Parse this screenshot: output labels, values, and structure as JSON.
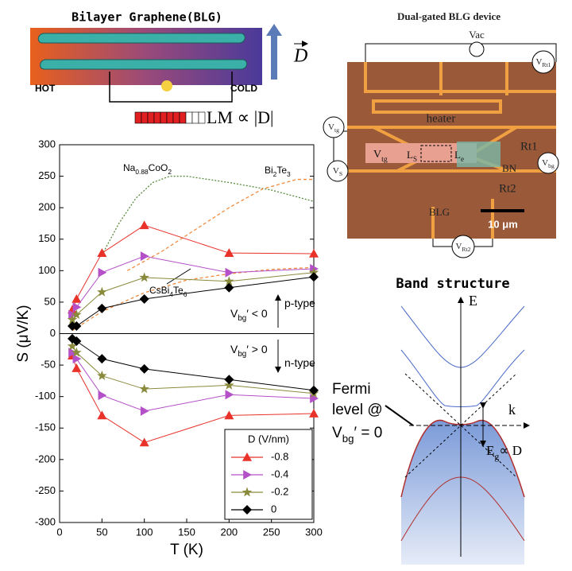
{
  "figure": {
    "blg": {
      "title": "Bilayer Graphene(BLG)",
      "hot": "HOT",
      "cold": "COLD",
      "field": "D",
      "lm": [
        {
          "text": "LM ∝ |"
        },
        {
          "text": "D"
        },
        {
          "text": "|"
        }
      ]
    },
    "device": {
      "title": "Dual-gated BLG device",
      "vac": "Vac",
      "vrt1": [
        {
          "text": "V"
        },
        {
          "text": "Rt1",
          "sub": true
        }
      ],
      "vrt2": [
        {
          "text": "V"
        },
        {
          "text": "Rt2",
          "sub": true
        }
      ],
      "vtg": [
        {
          "text": "V"
        },
        {
          "text": "tg",
          "sub": true
        }
      ],
      "vs": [
        {
          "text": "V"
        },
        {
          "text": "S",
          "sub": true
        }
      ],
      "vbg": [
        {
          "text": "V"
        },
        {
          "text": "bg",
          "sub": true
        }
      ],
      "vtg_inner": [
        {
          "text": "V"
        },
        {
          "text": "tg",
          "sub": true
        }
      ],
      "ls": [
        {
          "text": "L"
        },
        {
          "text": "S",
          "sub": true
        }
      ],
      "le": [
        {
          "text": "L"
        },
        {
          "text": "e",
          "sub": true
        }
      ],
      "heater": "heater",
      "rt1": "Rt1",
      "rt2": "Rt2",
      "bn": "BN",
      "blg": "BLG",
      "scale": "10 μm"
    },
    "band": {
      "title": "Band structure",
      "e": "E",
      "k": "k",
      "fermi1": "Fermi",
      "fermi2": "level @",
      "fermi3": [
        {
          "text": "V"
        },
        {
          "text": "bg",
          "sub": true
        },
        {
          "text": "′ = 0"
        }
      ],
      "eg": [
        {
          "text": "E"
        },
        {
          "text": "g",
          "sub": true
        },
        {
          "text": "∝ D"
        }
      ]
    }
  },
  "chart_data": {
    "type": "line",
    "x_label": "T (K)",
    "y_label": "S (μV/K)",
    "xlim": [
      0,
      300
    ],
    "xticks": [
      0,
      50,
      100,
      150,
      200,
      250,
      300
    ],
    "ylim": [
      -300,
      300
    ],
    "yticks": [
      -300,
      -250,
      -200,
      -150,
      -100,
      -50,
      0,
      50,
      100,
      150,
      200,
      250,
      300
    ],
    "legend_title": "D (V/nm)",
    "legend_position": "lower right",
    "x": [
      15,
      20,
      50,
      100,
      200,
      300
    ],
    "series": [
      {
        "name": "-0.8",
        "color": "#e8322a",
        "marker": "triangle-up",
        "values": [
          38,
          55,
          128,
          172,
          128,
          127
        ],
        "n_values": [
          -35,
          -55,
          -130,
          -173,
          -130,
          -127
        ]
      },
      {
        "name": "-0.4",
        "color": "#b450c8",
        "marker": "triangle-right",
        "values": [
          30,
          42,
          97,
          123,
          97,
          103
        ],
        "n_values": [
          -30,
          -40,
          -98,
          -123,
          -97,
          -103
        ]
      },
      {
        "name": "-0.2",
        "color": "#8a8a3c",
        "marker": "star",
        "values": [
          22,
          30,
          66,
          89,
          83,
          97
        ],
        "n_values": [
          -20,
          -30,
          -67,
          -88,
          -82,
          -95
        ]
      },
      {
        "name": "0",
        "color": "#000000",
        "marker": "diamond",
        "values": [
          12,
          12,
          40,
          55,
          73,
          90
        ],
        "n_values": [
          -8,
          -12,
          -40,
          -56,
          -73,
          -90
        ]
      }
    ],
    "references": [
      {
        "label": [
          {
            "text": "Na"
          },
          {
            "text": "0.88",
            "sub": true
          },
          {
            "text": "CoO"
          },
          {
            "text": "2",
            "sub": true
          }
        ],
        "color": "#5a8a3c",
        "dash": "2 2",
        "x": [
          50,
          70,
          90,
          110,
          130,
          150,
          200,
          250,
          300
        ],
        "values": [
          125,
          175,
          215,
          240,
          250,
          250,
          240,
          228,
          210
        ]
      },
      {
        "label": [
          {
            "text": "Bi"
          },
          {
            "text": "2",
            "sub": true
          },
          {
            "text": "Te"
          },
          {
            "text": "3",
            "sub": true
          }
        ],
        "color": "#f08a3c",
        "dash": "4 3",
        "x": [
          80,
          120,
          160,
          200,
          240,
          280,
          300
        ],
        "values": [
          100,
          130,
          165,
          200,
          230,
          245,
          245
        ]
      },
      {
        "label": [
          {
            "text": "CsBi"
          },
          {
            "text": "4",
            "sub": true
          },
          {
            "text": "Te"
          },
          {
            "text": "6",
            "sub": true
          }
        ],
        "color": "#f08a3c",
        "dash": "4 3",
        "x": [
          15,
          50,
          100,
          150,
          200,
          250,
          300
        ],
        "values": [
          5,
          35,
          65,
          85,
          95,
          102,
          105
        ]
      }
    ],
    "annotations": [
      [
        {
          "text": "V"
        },
        {
          "text": "bg",
          "sub": true
        },
        {
          "text": "′ < 0"
        }
      ],
      [
        {
          "text": "p-type"
        }
      ],
      [
        {
          "text": "V"
        },
        {
          "text": "bg",
          "sub": true
        },
        {
          "text": "′ > 0"
        }
      ],
      [
        {
          "text": "n-type"
        }
      ]
    ]
  }
}
